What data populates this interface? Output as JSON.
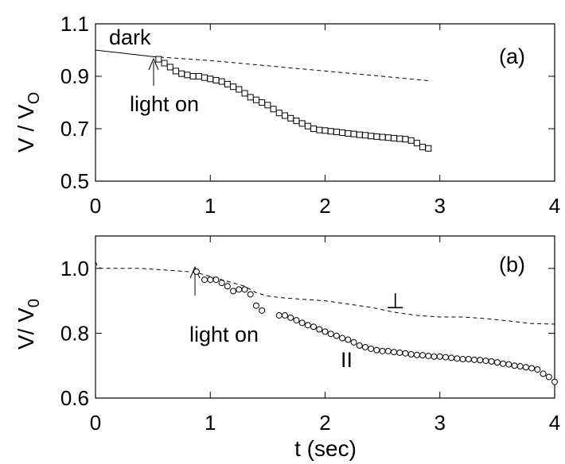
{
  "chart_data": [
    {
      "type": "scatter",
      "panel_label": "(a)",
      "ylabel": "V / V",
      "ylabel_sub": "O",
      "xlabel": "",
      "xlim": [
        0,
        4
      ],
      "ylim": [
        0.5,
        1.1
      ],
      "xticks": [
        "0",
        "1",
        "2",
        "3",
        "4"
      ],
      "yticks": [
        "0.5",
        "0.7",
        "0.9",
        "1.1"
      ],
      "ytick_values": [
        0.5,
        0.7,
        0.9,
        1.1
      ],
      "annotations": [
        "dark",
        "light on"
      ],
      "series": [
        {
          "style": "solid-line",
          "x": [
            0,
            0.1,
            0.2,
            0.3,
            0.4,
            0.5,
            0.55
          ],
          "y": [
            1.0,
            0.995,
            0.99,
            0.985,
            0.98,
            0.975,
            0.973
          ]
        },
        {
          "style": "dashed-line",
          "x": [
            0.5,
            1.0,
            1.5,
            2.0,
            2.5,
            2.9
          ],
          "y": [
            0.975,
            0.96,
            0.94,
            0.92,
            0.9,
            0.883
          ]
        },
        {
          "style": "square-markers",
          "x": [
            0.55,
            0.6,
            0.65,
            0.7,
            0.75,
            0.8,
            0.85,
            0.9,
            0.95,
            1.0,
            1.05,
            1.1,
            1.15,
            1.2,
            1.25,
            1.3,
            1.35,
            1.4,
            1.45,
            1.5,
            1.55,
            1.6,
            1.65,
            1.7,
            1.75,
            1.8,
            1.85,
            1.9,
            1.95,
            2.0,
            2.05,
            2.1,
            2.15,
            2.2,
            2.25,
            2.3,
            2.35,
            2.4,
            2.45,
            2.5,
            2.55,
            2.6,
            2.65,
            2.7,
            2.75,
            2.8,
            2.85,
            2.9
          ],
          "y": [
            0.965,
            0.95,
            0.935,
            0.92,
            0.91,
            0.905,
            0.9,
            0.9,
            0.895,
            0.89,
            0.885,
            0.88,
            0.87,
            0.86,
            0.85,
            0.835,
            0.82,
            0.81,
            0.8,
            0.79,
            0.775,
            0.76,
            0.75,
            0.74,
            0.73,
            0.72,
            0.71,
            0.7,
            0.695,
            0.693,
            0.69,
            0.688,
            0.685,
            0.682,
            0.68,
            0.677,
            0.675,
            0.672,
            0.67,
            0.668,
            0.666,
            0.664,
            0.662,
            0.66,
            0.655,
            0.645,
            0.63,
            0.625
          ]
        }
      ]
    },
    {
      "type": "scatter",
      "panel_label": "(b)",
      "ylabel": "V/ V",
      "ylabel_sub": "0",
      "xlabel": "t (sec)",
      "xlim": [
        0,
        4
      ],
      "ylim": [
        0.6,
        1.1
      ],
      "xticks": [
        "0",
        "1",
        "2",
        "3",
        "4"
      ],
      "yticks": [
        "0.6",
        "0.8",
        "1.0"
      ],
      "ytick_values": [
        0.6,
        0.8,
        1.0
      ],
      "annotations": [
        "light on",
        "⊥",
        "II"
      ],
      "series": [
        {
          "style": "dashed-line",
          "x": [
            0.0,
            0.02,
            0.05,
            0.2,
            0.4,
            0.6,
            0.8,
            0.9,
            1.0,
            1.1,
            1.2,
            1.3,
            1.4,
            1.5,
            1.6,
            1.8,
            2.0,
            2.2,
            2.4,
            2.6,
            2.8,
            3.0,
            3.2,
            3.4,
            3.6,
            3.8,
            4.0
          ],
          "y": [
            1.02,
            1.005,
            1.0,
            1.0,
            1.0,
            0.995,
            0.99,
            0.985,
            0.975,
            0.965,
            0.955,
            0.945,
            0.925,
            0.915,
            0.91,
            0.905,
            0.9,
            0.89,
            0.88,
            0.865,
            0.855,
            0.85,
            0.85,
            0.845,
            0.838,
            0.83,
            0.828
          ]
        },
        {
          "style": "circle-markers",
          "x": [
            0.88,
            0.95,
            1.0,
            1.05,
            1.1,
            1.15,
            1.2,
            1.25,
            1.3,
            1.35,
            1.4,
            1.45,
            1.6,
            1.65,
            1.7,
            1.75,
            1.8,
            1.85,
            1.9,
            1.95,
            2.0,
            2.05,
            2.1,
            2.15,
            2.2,
            2.25,
            2.3,
            2.35,
            2.4,
            2.45,
            2.5,
            2.55,
            2.6,
            2.65,
            2.7,
            2.75,
            2.8,
            2.85,
            2.9,
            2.95,
            3.0,
            3.05,
            3.1,
            3.15,
            3.2,
            3.25,
            3.3,
            3.35,
            3.4,
            3.45,
            3.5,
            3.55,
            3.6,
            3.65,
            3.7,
            3.75,
            3.8,
            3.85,
            3.9,
            3.95,
            4.0
          ],
          "y": [
            0.99,
            0.965,
            0.965,
            0.965,
            0.955,
            0.945,
            0.93,
            0.935,
            0.935,
            0.92,
            0.885,
            0.87,
            0.855,
            0.855,
            0.848,
            0.84,
            0.832,
            0.825,
            0.82,
            0.812,
            0.805,
            0.798,
            0.792,
            0.785,
            0.78,
            0.772,
            0.762,
            0.757,
            0.752,
            0.748,
            0.745,
            0.745,
            0.742,
            0.74,
            0.738,
            0.735,
            0.733,
            0.732,
            0.73,
            0.728,
            0.728,
            0.726,
            0.724,
            0.722,
            0.72,
            0.72,
            0.718,
            0.717,
            0.715,
            0.713,
            0.71,
            0.706,
            0.704,
            0.7,
            0.698,
            0.695,
            0.692,
            0.688,
            0.675,
            0.665,
            0.65
          ]
        }
      ]
    }
  ]
}
